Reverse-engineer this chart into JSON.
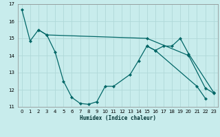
{
  "xlabel": "Humidex (Indice chaleur)",
  "bg_color": "#c8ecec",
  "grid_color": "#b0d8d8",
  "line_color": "#006666",
  "xlim": [
    -0.5,
    23.5
  ],
  "ylim": [
    11,
    17
  ],
  "lines": [
    {
      "x": [
        0,
        1,
        2,
        3,
        15,
        20,
        22,
        23
      ],
      "y": [
        16.7,
        14.85,
        15.5,
        15.2,
        15.0,
        14.0,
        12.1,
        11.8
      ]
    },
    {
      "x": [
        2,
        3,
        4,
        5,
        6,
        7,
        8,
        9,
        10,
        11,
        13,
        14,
        15,
        16,
        21,
        22
      ],
      "y": [
        15.5,
        15.2,
        14.2,
        12.5,
        11.55,
        11.2,
        11.15,
        11.3,
        12.2,
        12.2,
        12.9,
        13.7,
        14.55,
        14.3,
        12.2,
        11.5
      ]
    },
    {
      "x": [
        15,
        16,
        17,
        18,
        19,
        20,
        23
      ],
      "y": [
        14.55,
        14.3,
        14.55,
        14.55,
        15.0,
        14.1,
        11.85
      ]
    }
  ],
  "xtick_labels": [
    "0",
    "1",
    "2",
    "3",
    "4",
    "5",
    "6",
    "7",
    "8",
    "9",
    "10",
    "11",
    "12",
    "13",
    "14",
    "15",
    "16",
    "17",
    "18",
    "19",
    "20",
    "21",
    "22",
    "23"
  ],
  "xticks": [
    0,
    1,
    2,
    3,
    4,
    5,
    6,
    7,
    8,
    9,
    10,
    11,
    12,
    13,
    14,
    15,
    16,
    17,
    18,
    19,
    20,
    21,
    22,
    23
  ],
  "yticks": [
    11,
    12,
    13,
    14,
    15,
    16,
    17
  ]
}
